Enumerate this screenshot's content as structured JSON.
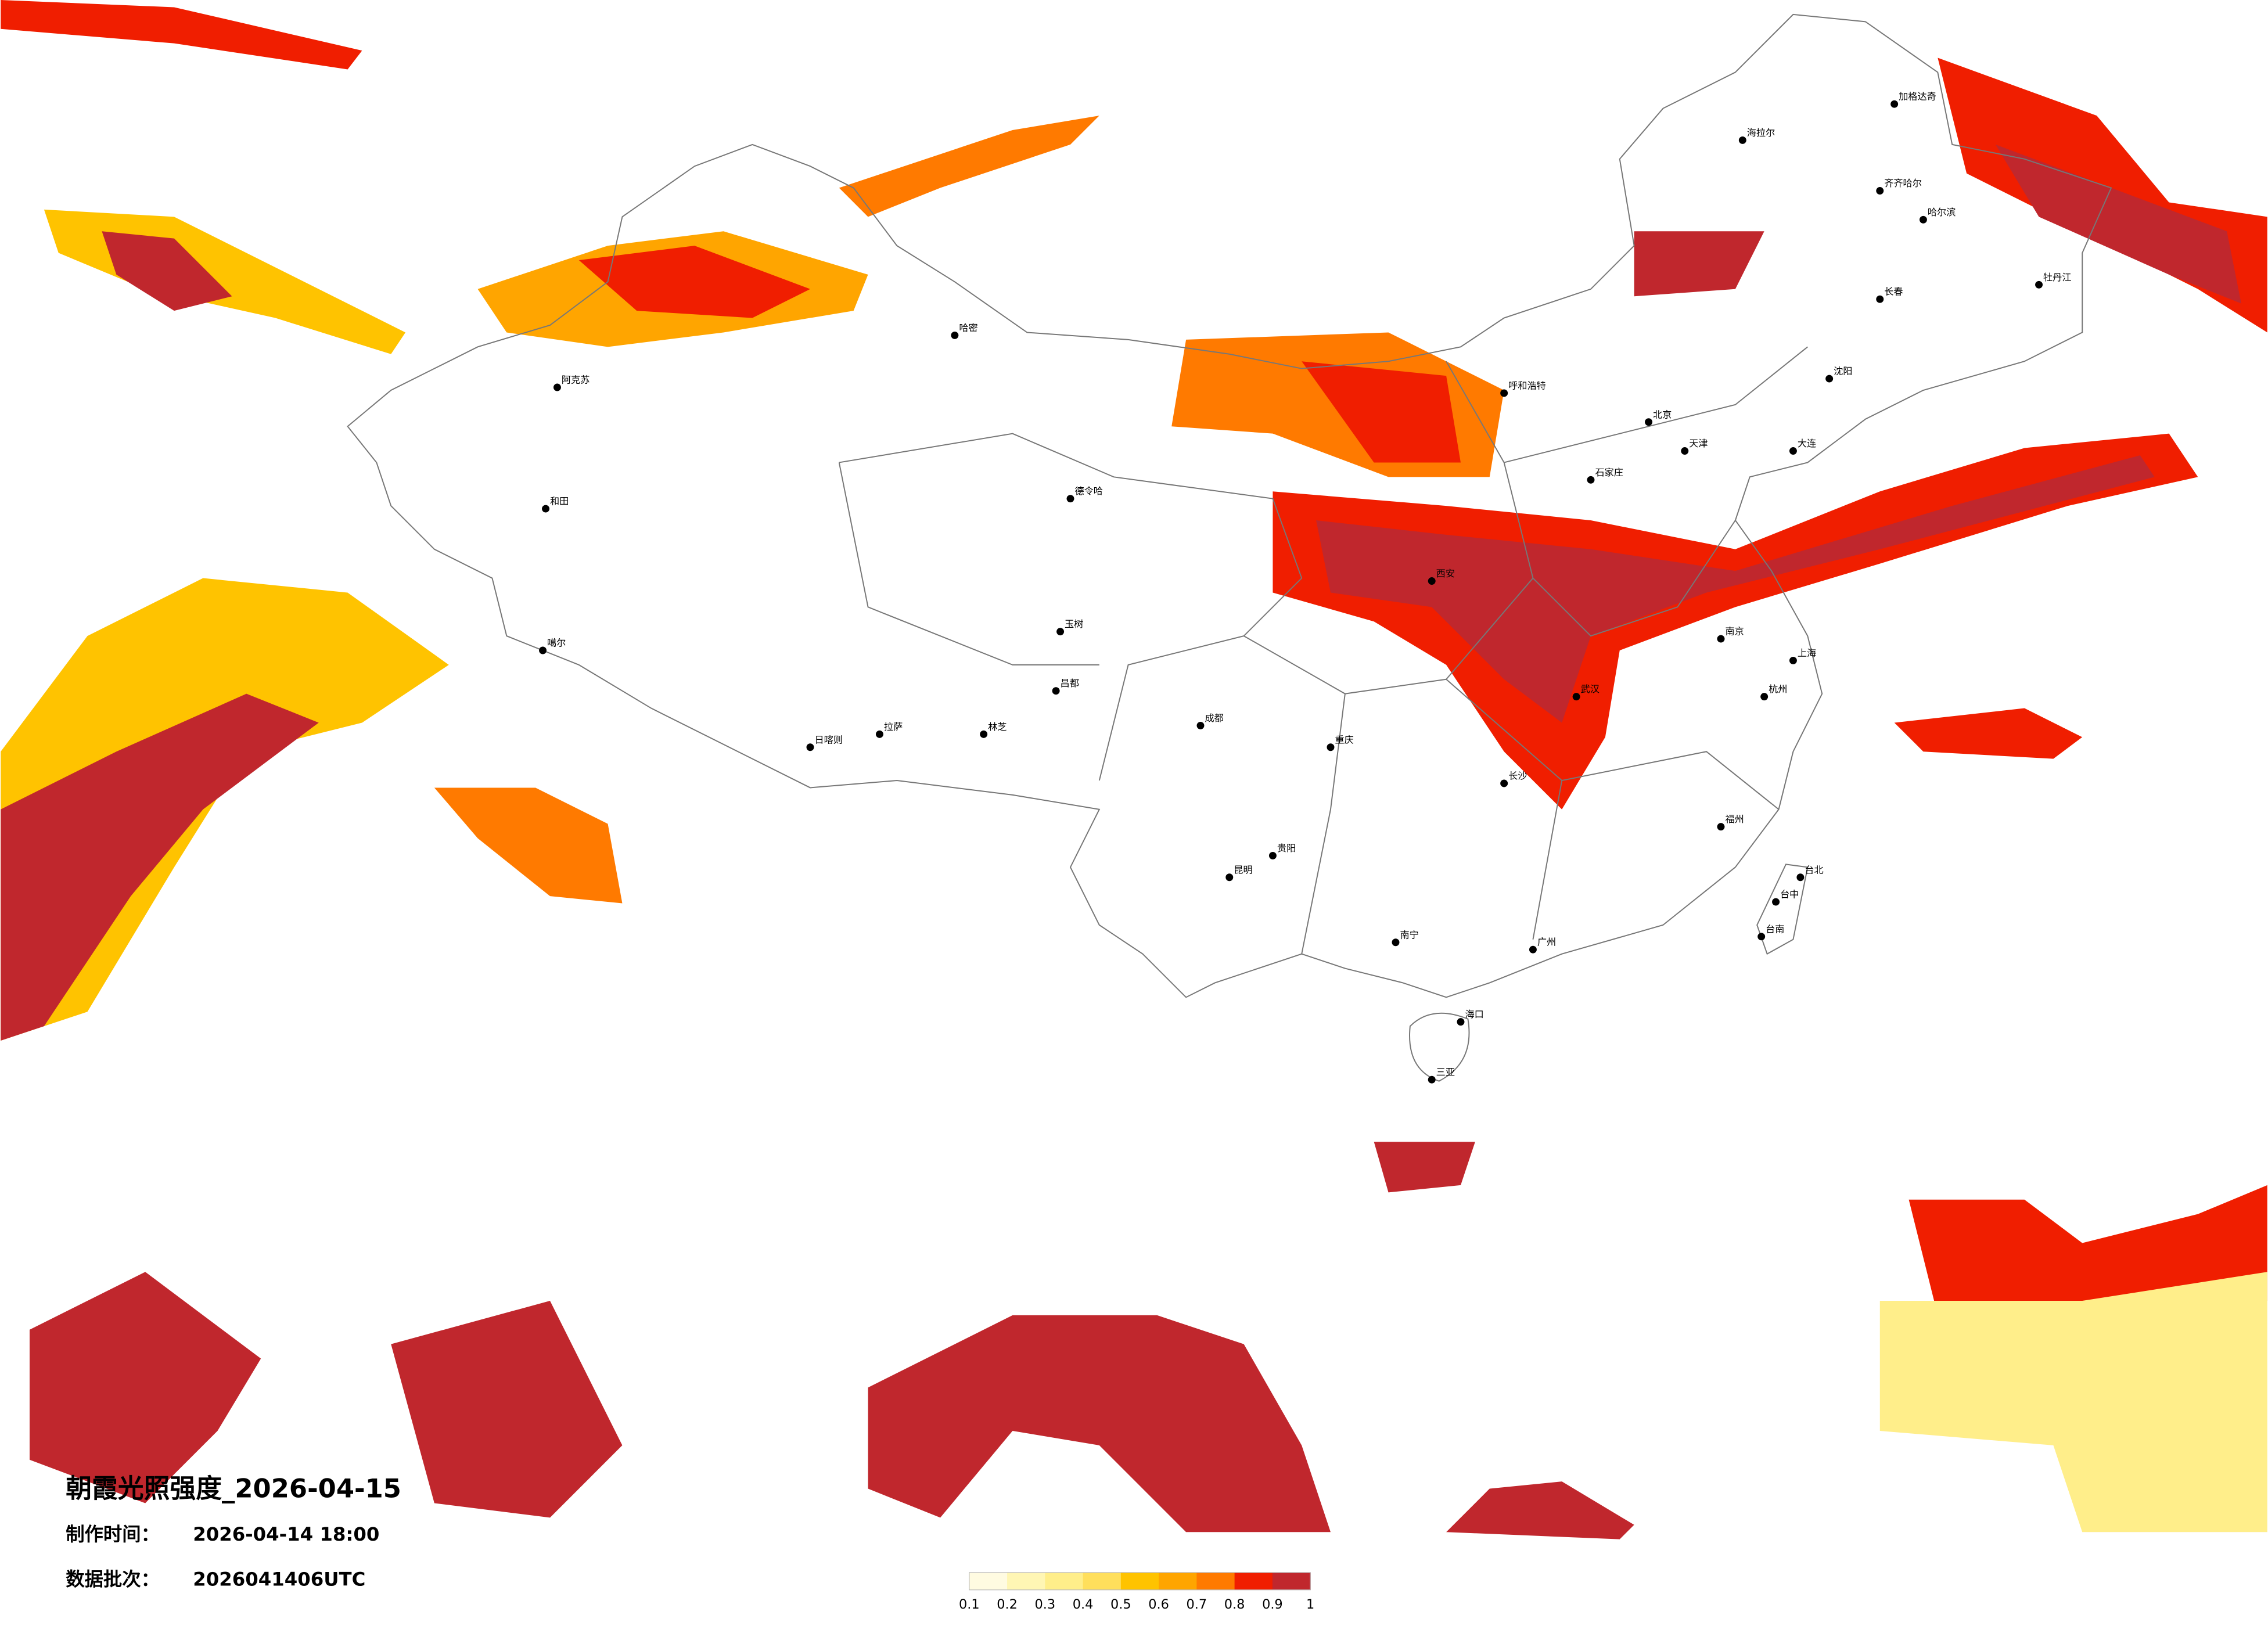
{
  "title": "朝霞光照强度_2026-04-15",
  "meta": [
    {
      "label": "制作时间：",
      "value": "2026-04-14 18:00"
    },
    {
      "label": "数据批次：",
      "value": "2026041406UTC"
    }
  ],
  "legend": {
    "colors": [
      "#fffbe1",
      "#fff6b4",
      "#ffee8a",
      "#ffdf5c",
      "#ffc300",
      "#ffa500",
      "#ff7a00",
      "#f01e00",
      "#c0272d"
    ],
    "ticks": [
      0.1,
      0.2,
      0.3,
      0.4,
      0.5,
      0.6,
      0.7,
      0.8,
      0.9,
      1
    ]
  },
  "cities": [
    "阿克苏",
    "和田",
    "噶尔",
    "日喀则",
    "拉萨",
    "林芝",
    "哈密",
    "德令哈",
    "玉树",
    "昌都",
    "呼和浩特",
    "北京",
    "天津",
    "石家庄",
    "西安",
    "成都",
    "重庆",
    "贵阳",
    "昆明",
    "南宁",
    "广州",
    "长沙",
    "武汉",
    "南京",
    "上海",
    "杭州",
    "福州",
    "台北",
    "台中",
    "台南",
    "海口",
    "三亚",
    "哈尔滨",
    "长春",
    "沈阳",
    "大连",
    "海拉尔",
    "齐齐哈尔",
    "加格达奇",
    "牡丹江"
  ]
}
